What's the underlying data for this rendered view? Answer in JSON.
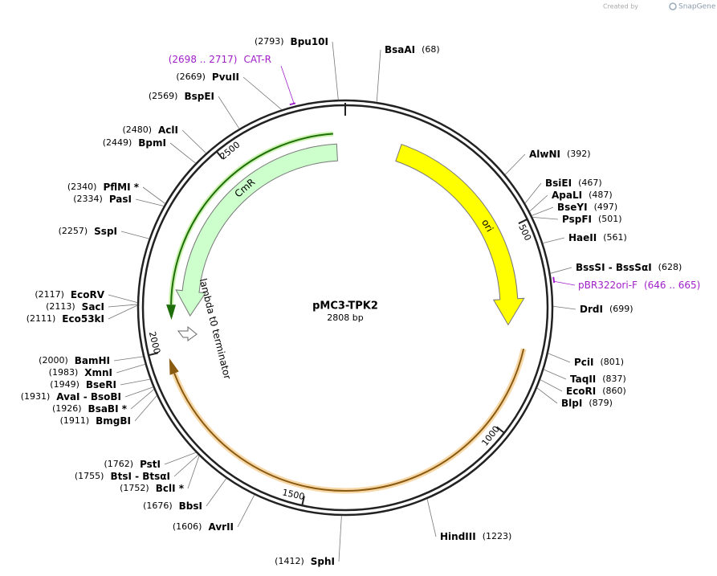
{
  "credit": "Created by",
  "brand": "SnapGene",
  "plasmid": {
    "name": "pMC3-TPK2",
    "length": "2808 bp"
  },
  "ruler": [
    "500",
    "1000",
    "1500",
    "2000",
    "2500"
  ],
  "features": {
    "cmr": "CmR",
    "ori": "ori",
    "terminator": "lambda t0 terminator"
  },
  "primers": [
    {
      "name": "CAT-R",
      "range": "(2698 .. 2717)"
    },
    {
      "name": "pBR322ori-F",
      "range": "(646 .. 665)"
    }
  ],
  "enzymes": [
    {
      "name": "Bpu10I",
      "position": "(2793)"
    },
    {
      "name": "PvuII",
      "position": "(2669)"
    },
    {
      "name": "BspEI",
      "position": "(2569)"
    },
    {
      "name": "AclI",
      "position": "(2480)"
    },
    {
      "name": "BpmI",
      "position": "(2449)"
    },
    {
      "name": "PflMI *",
      "position": "(2340)"
    },
    {
      "name": "PasI",
      "position": "(2334)"
    },
    {
      "name": "SspI",
      "position": "(2257)"
    },
    {
      "name": "EcoRV",
      "position": "(2117)"
    },
    {
      "name": "SacI",
      "position": "(2113)"
    },
    {
      "name": "Eco53kI",
      "position": "(2111)"
    },
    {
      "name": "BamHI",
      "position": "(2000)"
    },
    {
      "name": "XmnI",
      "position": "(1983)"
    },
    {
      "name": "BseRI",
      "position": "(1949)"
    },
    {
      "name": "AvaI - BsoBI",
      "position": "(1931)"
    },
    {
      "name": "BsaBI *",
      "position": "(1926)"
    },
    {
      "name": "BmgBI",
      "position": "(1911)"
    },
    {
      "name": "PstI",
      "position": "(1762)"
    },
    {
      "name": "BtsI - BtsαI",
      "position": "(1755)"
    },
    {
      "name": "BclI *",
      "position": "(1752)"
    },
    {
      "name": "BbsI",
      "position": "(1676)"
    },
    {
      "name": "AvrII",
      "position": "(1606)"
    },
    {
      "name": "SphI",
      "position": "(1412)"
    },
    {
      "name": "BsaAI",
      "position": "(68)"
    },
    {
      "name": "AlwNI",
      "position": "(392)"
    },
    {
      "name": "BsiEI",
      "position": "(467)"
    },
    {
      "name": "ApaLI",
      "position": "(487)"
    },
    {
      "name": "BseYI",
      "position": "(497)"
    },
    {
      "name": "PspFI",
      "position": "(501)"
    },
    {
      "name": "HaeII",
      "position": "(561)"
    },
    {
      "name": "BssSI - BssSαI",
      "position": "(628)"
    },
    {
      "name": "DrdI",
      "position": "(699)"
    },
    {
      "name": "PciI",
      "position": "(801)"
    },
    {
      "name": "TaqII",
      "position": "(837)"
    },
    {
      "name": "EcoRI",
      "position": "(860)"
    },
    {
      "name": "BlpI",
      "position": "(879)"
    },
    {
      "name": "HindIII",
      "position": "(1223)"
    }
  ]
}
